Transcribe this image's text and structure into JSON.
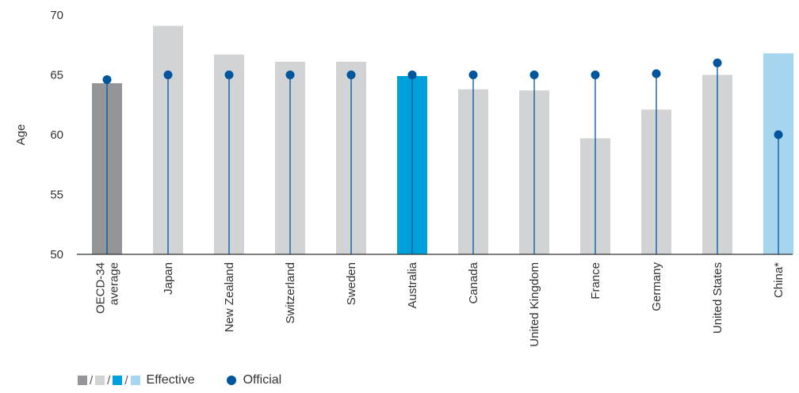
{
  "chart_data": {
    "type": "bar",
    "ylabel": "Age",
    "xlabel": "",
    "ylim": [
      50,
      70
    ],
    "yticks": [
      50,
      55,
      60,
      65,
      70
    ],
    "grid": false,
    "categories": [
      "OECD-34 average",
      "Japan",
      "New Zealand",
      "Switzerland",
      "Sweden",
      "Australia",
      "Canada",
      "United Kingdom",
      "France",
      "Germany",
      "United States",
      "China*"
    ],
    "category_lines": [
      [
        "OECD-34",
        "average"
      ],
      [
        "Japan"
      ],
      [
        "New Zealand"
      ],
      [
        "Switzerland"
      ],
      [
        "Sweden"
      ],
      [
        "Australia"
      ],
      [
        "Canada"
      ],
      [
        "United Kingdom"
      ],
      [
        "France"
      ],
      [
        "Germany"
      ],
      [
        "United States"
      ],
      [
        "China*"
      ]
    ],
    "series": [
      {
        "name": "Effective",
        "type": "bar",
        "values": [
          64.3,
          69.1,
          66.7,
          66.1,
          66.1,
          64.9,
          63.8,
          63.7,
          59.7,
          62.1,
          65.0,
          66.8
        ]
      },
      {
        "name": "Official",
        "type": "lollipop",
        "values": [
          64.6,
          65.0,
          65.0,
          65.0,
          65.0,
          65.0,
          65.0,
          65.0,
          65.0,
          65.1,
          66.0,
          60.0
        ]
      }
    ],
    "bar_colors": [
      "#939598",
      "#d1d3d4",
      "#d1d3d4",
      "#d1d3d4",
      "#d1d3d4",
      "#00a0dc",
      "#d1d3d4",
      "#d1d3d4",
      "#d1d3d4",
      "#d1d3d4",
      "#d1d3d4",
      "#a6d5ef"
    ],
    "official_color": "#00569d",
    "legend": {
      "position": "bottom-left",
      "effective_label": "Effective",
      "official_label": "Official",
      "separator": "/",
      "effective_swatches": [
        "#939598",
        "#d1d3d4",
        "#00a0dc",
        "#a6d5ef"
      ]
    }
  }
}
